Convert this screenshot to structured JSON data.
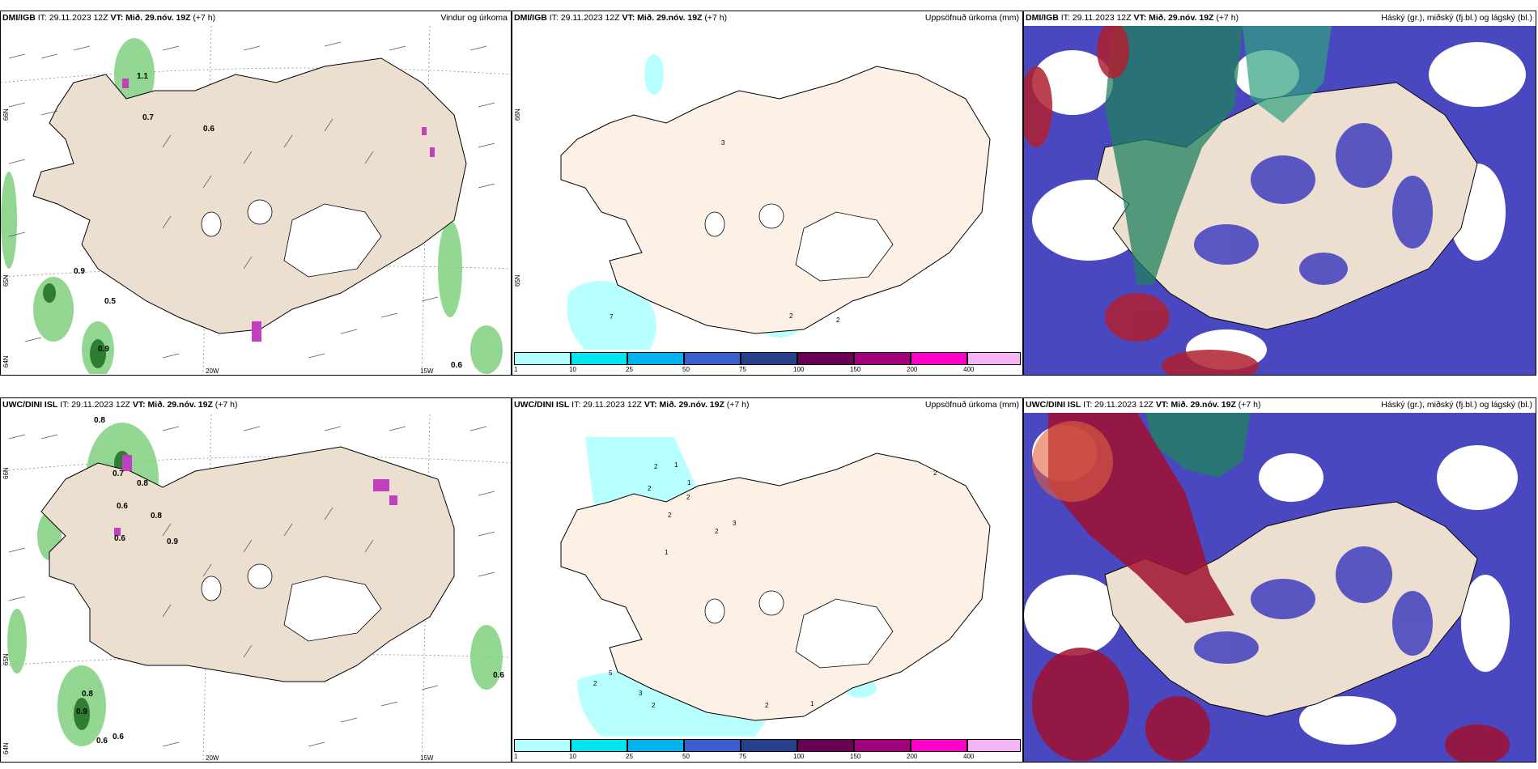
{
  "panels": [
    {
      "model": "DMI/IGB",
      "it": " IT: 29.11.2023 12Z ",
      "vt_label": "VT:",
      "vt": " Mið. 29.nóv. 19Z",
      "lead": " (+7 h)",
      "title": "Vindur og úrkoma",
      "ticks": {
        "lat66": "66N",
        "lat65": "65N",
        "lat64": "64N",
        "lon20": "20W",
        "lon15": "15W"
      },
      "labels": [
        "1.1",
        "0.7",
        "0.6",
        "0.9",
        "0.5",
        "0.9",
        "0.6"
      ]
    },
    {
      "model": "DMI/IGB",
      "it": " IT: 29.11.2023 12Z ",
      "vt_label": "VT:",
      "vt": " Mið. 29.nóv. 19Z",
      "lead": " (+7 h)",
      "title": "Uppsöfnuð úrkoma (mm)",
      "ticks": {
        "lat66": "66N",
        "lat65": "65N"
      },
      "labels": [
        "3",
        "7",
        "2",
        "2"
      ]
    },
    {
      "model": "DMI/IGB",
      "it": " IT: 29.11.2023 12Z ",
      "vt_label": "VT:",
      "vt": " Mið. 29.nóv. 19Z",
      "lead": " (+7 h)",
      "title": "Háský (gr.), miðský (fj.bl.) og lágský (bl.)"
    },
    {
      "model": "UWC/DINI ISL",
      "it": " IT: 29.11.2023 12Z ",
      "vt_label": "VT:",
      "vt": " Mið. 29.nóv. 19Z",
      "lead": " (+7 h)",
      "title": "",
      "ticks": {
        "lat66": "66N",
        "lat65": "65N",
        "lat64": "64N",
        "lon20": "20W",
        "lon15": "15W"
      },
      "labels": [
        "0.8",
        "0.7",
        "0.8",
        "0.6",
        "0.8",
        "0.6",
        "0.9",
        "0.6",
        "0.8",
        "0.9",
        "0.6",
        "0.6"
      ]
    },
    {
      "model": "UWC/DINI ISL",
      "it": " IT: 29.11.2023 12Z ",
      "vt_label": "VT:",
      "vt": " Mið. 29.nóv. 19Z",
      "lead": " (+7 h)",
      "title": "Uppsöfnuð úrkoma (mm)",
      "ticks": {
        "lat66": "66N",
        "lat65": "65N"
      },
      "labels": [
        "2",
        "1",
        "2",
        "1",
        "2",
        "2",
        "3",
        "2",
        "1",
        "5",
        "2",
        "3",
        "2",
        "2",
        "1",
        "2"
      ]
    },
    {
      "model": "UWC/DINI ISL",
      "it": " IT: 29.11.2023 12Z ",
      "vt_label": "VT:",
      "vt": " Mið. 29.nóv. 19Z",
      "lead": " (+7 h)",
      "title": "Háský (gr.), miðský (fj.bl.) og lágský (bl.)"
    }
  ],
  "colorbar": {
    "levels": [
      "1",
      "10",
      "25",
      "50",
      "75",
      "100",
      "150",
      "200",
      "400"
    ],
    "colors": [
      "#b3ffff",
      "#00e5ee",
      "#00b2ee",
      "#3a5fcd",
      "#27408b",
      "#6a0053",
      "#a0007a",
      "#ff00c8",
      "#f5b5f5"
    ]
  },
  "colors": {
    "land": "#eddfd0",
    "land_precip": "#fdf1e6",
    "sea_precip": "#b8ffff",
    "green": "#7fd07f",
    "magenta": "#c040c0",
    "cloud_low": "#4444cc",
    "cloud_mid": "#208060",
    "cloud_high": "#b02030"
  }
}
